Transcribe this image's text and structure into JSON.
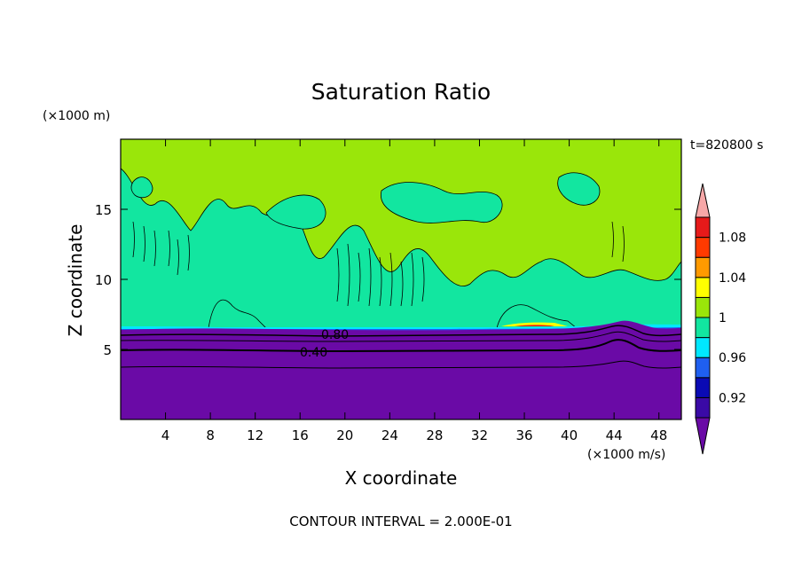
{
  "chart_data": {
    "type": "heatmap",
    "title": "Saturation Ratio",
    "xlabel": "X coordinate",
    "ylabel": "Z coordinate",
    "x_unit": "(×1000 m/s)",
    "y_unit": "(×1000 m)",
    "time_label": "t=820800 s",
    "footer": "CONTOUR INTERVAL = 2.000E-01",
    "xlim": [
      0,
      50
    ],
    "ylim": [
      0,
      20
    ],
    "x_ticks": [
      4,
      8,
      12,
      16,
      20,
      24,
      28,
      32,
      36,
      40,
      44,
      48
    ],
    "y_ticks": [
      5,
      10,
      15
    ],
    "legend_ticks": [
      "0.92",
      "0.96",
      "1",
      "1.04",
      "1.08"
    ],
    "legend_bins": [
      {
        "min": null,
        "max": 0.9,
        "color": "#6a0aa6"
      },
      {
        "min": 0.9,
        "max": 0.92,
        "color": "#3a0aa6"
      },
      {
        "min": 0.92,
        "max": 0.94,
        "color": "#0a0ab4"
      },
      {
        "min": 0.94,
        "max": 0.96,
        "color": "#1f5ff0"
      },
      {
        "min": 0.96,
        "max": 0.98,
        "color": "#00e8ff"
      },
      {
        "min": 0.98,
        "max": 1.0,
        "color": "#12e6a0"
      },
      {
        "min": 1.0,
        "max": 1.02,
        "color": "#9ae60a"
      },
      {
        "min": 1.02,
        "max": 1.04,
        "color": "#ffff00"
      },
      {
        "min": 1.04,
        "max": 1.06,
        "color": "#ff9a00"
      },
      {
        "min": 1.06,
        "max": 1.08,
        "color": "#ff3a00"
      },
      {
        "min": 1.08,
        "max": 1.1,
        "color": "#e61a1a"
      },
      {
        "min": 1.1,
        "max": null,
        "color": "#f7a8a8"
      }
    ],
    "regions": [
      {
        "value_range": "< 0.90",
        "z_range": [
          0,
          6.5
        ]
      },
      {
        "value_range": "0.98-1.00",
        "z_range": [
          6.5,
          11
        ]
      },
      {
        "value_range": "1.00-1.02",
        "z_range": [
          7,
          20
        ]
      }
    ],
    "contour_labels": [
      {
        "text": "0.80",
        "x": 19,
        "z": 6.1
      },
      {
        "text": "0.40",
        "x": 18,
        "z": 4.9
      }
    ]
  }
}
